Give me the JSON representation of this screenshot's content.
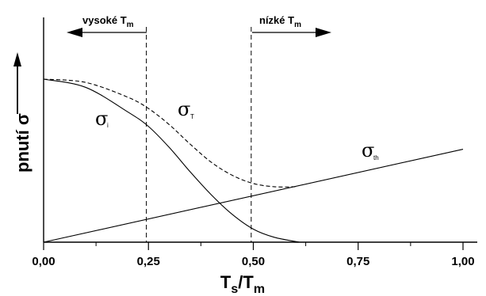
{
  "chart_data": {
    "type": "line",
    "xlabel_main": "T",
    "xlabel_sub1": "s",
    "xlabel_mid": "/T",
    "xlabel_sub2": "m",
    "ylabel": "pnutí σ",
    "xlim": [
      0.0,
      1.0
    ],
    "ylim": [
      0.0,
      1.0
    ],
    "x_ticks": [
      0.0,
      0.25,
      0.5,
      0.75,
      1.0
    ],
    "x_tick_labels": [
      "0,00",
      "0,25",
      "0,50",
      "0,75",
      "1,00"
    ],
    "grid": false,
    "series": [
      {
        "name": "σi",
        "symbol": "σ",
        "sub": "i",
        "style": "solid",
        "x": [
          0.0,
          0.1,
          0.2,
          0.25,
          0.3,
          0.35,
          0.4,
          0.45,
          0.5,
          0.55,
          0.61
        ],
        "y": [
          1.0,
          0.95,
          0.8,
          0.71,
          0.58,
          0.43,
          0.29,
          0.17,
          0.08,
          0.03,
          0.0
        ]
      },
      {
        "name": "σT",
        "symbol": "σ",
        "sub": "T",
        "style": "dashed",
        "x": [
          0.0,
          0.1,
          0.2,
          0.25,
          0.3,
          0.35,
          0.4,
          0.45,
          0.5,
          0.55,
          0.6
        ],
        "y": [
          1.0,
          0.98,
          0.89,
          0.82,
          0.72,
          0.6,
          0.49,
          0.41,
          0.36,
          0.34,
          0.34
        ]
      },
      {
        "name": "σth",
        "symbol": "σ",
        "sub": "th",
        "style": "solid",
        "x": [
          0.0,
          1.0
        ],
        "y": [
          0.0,
          0.57
        ]
      }
    ],
    "vlines": [
      0.245,
      0.495
    ],
    "annotations": [
      {
        "text_main": "vysoké T",
        "text_sub": "m",
        "arrow": "left"
      },
      {
        "text_main": "nízké T",
        "text_sub": "m",
        "arrow": "right"
      }
    ]
  }
}
